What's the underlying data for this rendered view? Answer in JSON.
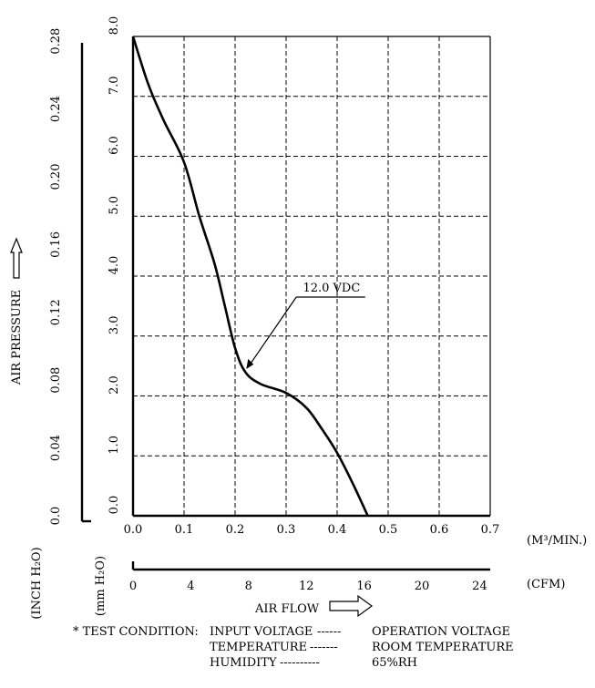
{
  "chart_data": {
    "type": "line",
    "xlabel": "AIR FLOW",
    "ylabel": "AIR PRESSURE",
    "x_unit_metric": "(M³/MIN.)",
    "x_unit_imperial": "(CFM)",
    "y_unit_metric": "(mm H₂O)",
    "y_unit_imperial": "(INCH H₂O)",
    "xlim": [
      0,
      0.7
    ],
    "ylim": [
      0,
      8
    ],
    "x_ticks": [
      "0.0",
      "0.1",
      "0.2",
      "0.3",
      "0.4",
      "0.5",
      "0.6",
      "0.7"
    ],
    "y_ticks": [
      "0.0",
      "1.0",
      "2.0",
      "3.0",
      "4.0",
      "5.0",
      "6.0",
      "7.0",
      "8.0"
    ],
    "cfm_ticks": [
      "0",
      "4",
      "8",
      "12",
      "16",
      "20",
      "24"
    ],
    "inch_ticks": [
      "0.0",
      "0.04",
      "0.08",
      "0.12",
      "0.16",
      "0.20",
      "0.24",
      "0.28"
    ],
    "grid": true,
    "series": [
      {
        "name": "12.0 VDC",
        "x": [
          0.0,
          0.03,
          0.06,
          0.1,
          0.13,
          0.16,
          0.18,
          0.2,
          0.22,
          0.25,
          0.3,
          0.34,
          0.37,
          0.4,
          0.43,
          0.46
        ],
        "y": [
          8.0,
          7.2,
          6.6,
          5.9,
          5.0,
          4.2,
          3.5,
          2.8,
          2.4,
          2.2,
          2.05,
          1.8,
          1.45,
          1.05,
          0.55,
          0.0
        ]
      }
    ]
  },
  "test_condition": {
    "prefix": "* TEST CONDITION:",
    "rows": [
      {
        "label": "INPUT VOLTAGE",
        "dashes": "------",
        "value": "OPERATION VOLTAGE"
      },
      {
        "label": "TEMPERATURE",
        "dashes": "-------",
        "value": "ROOM TEMPERATURE"
      },
      {
        "label": "HUMIDITY",
        "dashes": "----------",
        "value": "65%RH"
      }
    ]
  }
}
